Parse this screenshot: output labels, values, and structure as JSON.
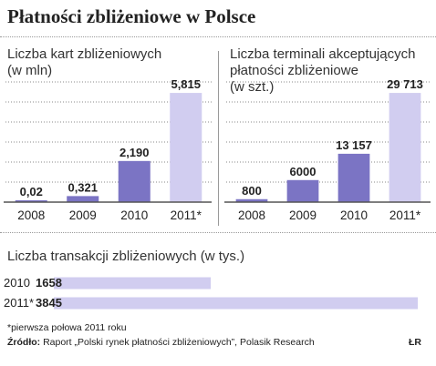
{
  "title": "Płatności zbliżeniowe w Polsce",
  "colors": {
    "bar": "#7b74c4",
    "bar_highlight": "#d1cdf0",
    "grid": "#8a8a8a",
    "axis": "#555555"
  },
  "chart_data": [
    {
      "type": "bar",
      "title": "Liczba kart zbliżeniowych (w mln)",
      "title_lines": [
        "Liczba kart zbliżeniowych",
        "(w mln)"
      ],
      "categories": [
        "2008",
        "2009",
        "2010",
        "2011*"
      ],
      "values": [
        0.02,
        0.321,
        2.19,
        5.815
      ],
      "value_labels": [
        "0,02",
        "0,321",
        "2,190",
        "5,815"
      ],
      "ylim": [
        0,
        6.4
      ],
      "highlight_last": true
    },
    {
      "type": "bar",
      "title": "Liczba terminali akceptujących płatności zbliżeniowe (w szt.)",
      "title_lines": [
        "Liczba terminali akceptujących",
        "płatności zbliżeniowe",
        "(w szt.)"
      ],
      "categories": [
        "2008",
        "2009",
        "2010",
        "2011*"
      ],
      "values": [
        800,
        6000,
        13157,
        29713
      ],
      "value_labels": [
        "800",
        "6000",
        "13 157",
        "29 713"
      ],
      "ylim": [
        0,
        32700
      ],
      "highlight_last": true
    },
    {
      "type": "bar",
      "orientation": "horizontal",
      "title": "Liczba transakcji zbliżeniowych (w tys.)",
      "categories": [
        "2010",
        "2011*"
      ],
      "values": [
        1658,
        3845
      ],
      "value_labels": [
        "1658",
        "3845"
      ],
      "xlim": [
        0,
        3845
      ]
    }
  ],
  "footnote": "*pierwsza połowa 2011 roku",
  "source_label": "Źródło:",
  "source_text": "Raport „Polski rynek płatności zbliżeniowych”, Polasik Research",
  "credit": "ŁR"
}
